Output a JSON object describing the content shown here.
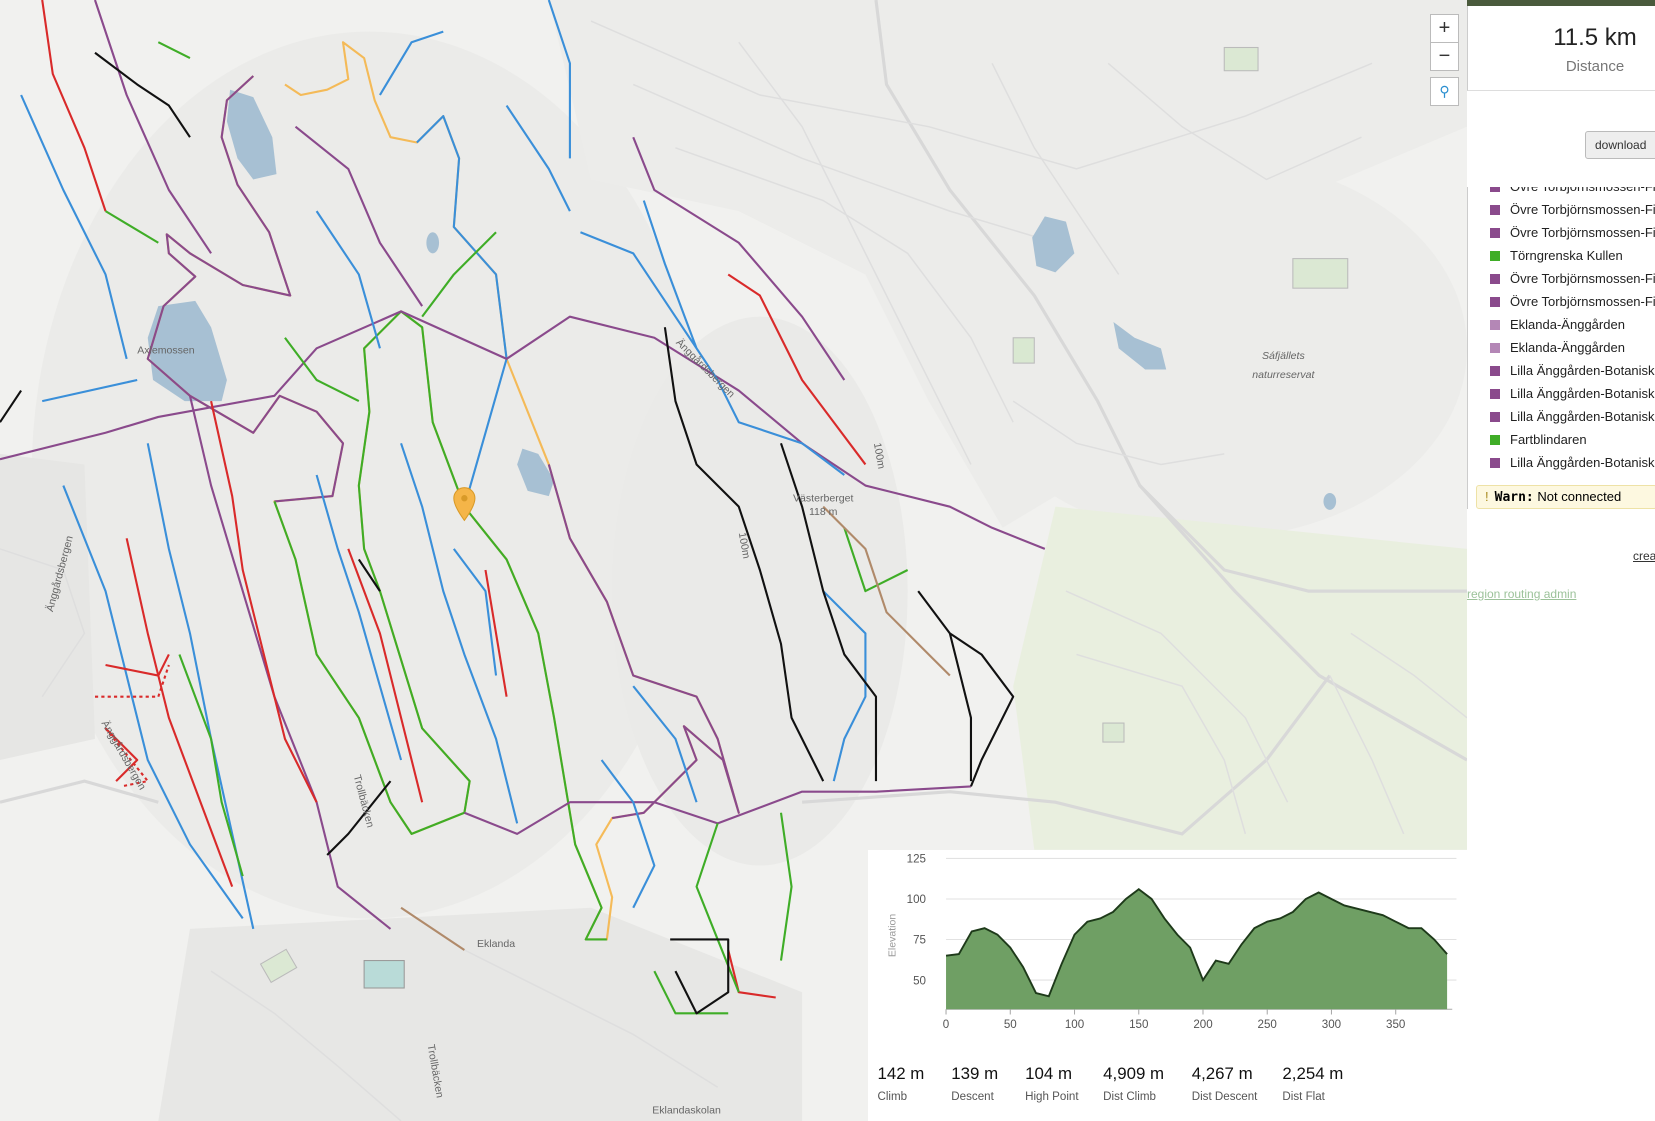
{
  "map": {
    "labels": [
      "Sáfjällets",
      "naturreservat",
      "Eklanda",
      "Västerberget",
      "118 m",
      "Änggårdsbergen",
      "Änggårdsbergen",
      "Änggårdsbergen",
      "Trollbäcken",
      "Axlemossen",
      "Eklandaskolan",
      "Trollbäcken",
      "100m",
      "100m"
    ],
    "zoom_in": "+",
    "zoom_out": "−"
  },
  "panel": {
    "distance_value": "11.5 km",
    "distance_label": "Distance",
    "download_button": "download",
    "segments": [
      {
        "name": "Övre Torbjörnsmossen-Fi",
        "color": "#8a4a8c"
      },
      {
        "name": "Övre Torbjörnsmossen-Fi",
        "color": "#8a4a8c"
      },
      {
        "name": "Övre Torbjörnsmossen-Fi",
        "color": "#8a4a8c"
      },
      {
        "name": "Törngrenska Kullen",
        "color": "#3fad27"
      },
      {
        "name": "Övre Torbjörnsmossen-Fi",
        "color": "#8a4a8c"
      },
      {
        "name": "Övre Torbjörnsmossen-Fi",
        "color": "#8a4a8c"
      },
      {
        "name": "Eklanda-Änggården",
        "color": "#b487b6"
      },
      {
        "name": "Eklanda-Änggården",
        "color": "#b487b6"
      },
      {
        "name": "Lilla Änggården-Botaniska",
        "color": "#8a4a8c"
      },
      {
        "name": "Lilla Änggården-Botaniska",
        "color": "#8a4a8c"
      },
      {
        "name": "Lilla Änggården-Botaniska",
        "color": "#8a4a8c"
      },
      {
        "name": "Fartblindaren",
        "color": "#3fad27"
      },
      {
        "name": "Lilla Änggården-Botaniska",
        "color": "#8a4a8c"
      }
    ],
    "warning_title": "Warn:",
    "warning_text": "Not connected",
    "create_link": "crea",
    "admin_link": "region routing admin"
  },
  "elevation_chart": {
    "type": "area",
    "y_label": "Elevation",
    "color": "#6f9f64",
    "x": [
      0,
      10,
      20,
      30,
      40,
      50,
      60,
      70,
      80,
      90,
      100,
      110,
      120,
      130,
      140,
      150,
      160,
      170,
      180,
      190,
      200,
      210,
      220,
      230,
      240,
      250,
      260,
      270,
      280,
      290,
      300,
      310,
      320,
      330,
      340,
      350,
      360,
      370,
      380,
      390
    ],
    "values": [
      65,
      66,
      80,
      82,
      78,
      70,
      58,
      42,
      40,
      60,
      78,
      86,
      88,
      92,
      100,
      106,
      100,
      88,
      78,
      70,
      50,
      62,
      60,
      72,
      82,
      86,
      88,
      92,
      100,
      104,
      100,
      96,
      94,
      92,
      90,
      86,
      82,
      82,
      75,
      66
    ],
    "xlim": [
      0,
      394
    ],
    "ylim": [
      32,
      125
    ],
    "xticks": [
      0,
      50,
      100,
      150,
      200,
      250,
      300,
      350
    ],
    "yticks": [
      50,
      75,
      100,
      125
    ],
    "grid": true
  },
  "summary": [
    {
      "value": "142 m",
      "label": "Climb"
    },
    {
      "value": "139 m",
      "label": "Descent"
    },
    {
      "value": "104 m",
      "label": "High Point"
    },
    {
      "value": "4,909 m",
      "label": "Dist Climb"
    },
    {
      "value": "4,267 m",
      "label": "Dist Descent"
    },
    {
      "value": "2,254 m",
      "label": "Dist Flat"
    }
  ]
}
